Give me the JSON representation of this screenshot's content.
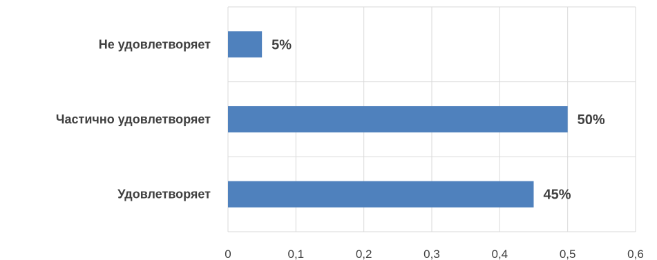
{
  "chart_data": {
    "type": "bar",
    "orientation": "horizontal",
    "categories": [
      "Не удовлетворяет",
      "Частично удовлетворяет",
      "Удовлетворяет"
    ],
    "values": [
      0.05,
      0.5,
      0.45
    ],
    "data_labels": [
      "5%",
      "50%",
      "45%"
    ],
    "xticks": [
      "0",
      "0,1",
      "0,2",
      "0,3",
      "0,4",
      "0,5",
      "0,6"
    ],
    "xlim": [
      0,
      0.6
    ],
    "grid": true,
    "legend": "none",
    "bar_color": "#4f81bd"
  }
}
